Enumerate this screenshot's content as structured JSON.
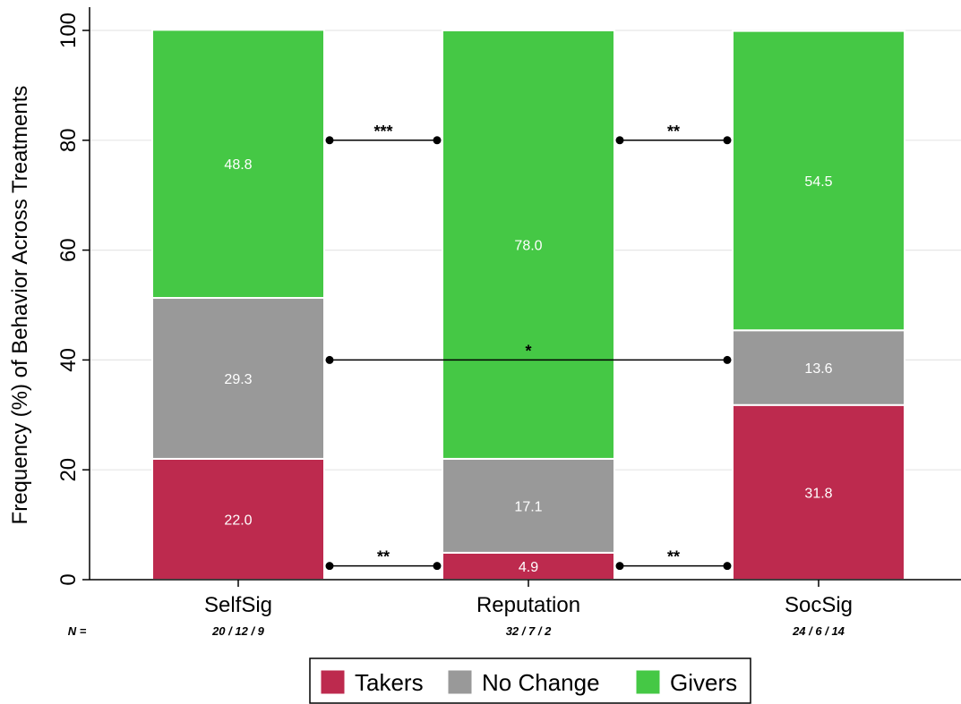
{
  "chart_data": {
    "type": "bar",
    "stacked": true,
    "title": "",
    "xlabel": "",
    "ylabel": "Frequency (%) of Behavior Across Treatments",
    "ylim": [
      0,
      100
    ],
    "yticks": [
      0,
      20,
      40,
      60,
      80,
      100
    ],
    "grid": true,
    "categories": [
      "SelfSig",
      "Reputation",
      "SocSig"
    ],
    "series": [
      {
        "name": "Takers",
        "color": "#bd2a4e",
        "values": [
          22.0,
          4.9,
          31.8
        ],
        "labels": [
          "22.0",
          "4.9",
          "31.8"
        ]
      },
      {
        "name": "No Change",
        "color": "#999999",
        "values": [
          29.3,
          17.1,
          13.6
        ],
        "labels": [
          "29.3",
          "17.1",
          "13.6"
        ]
      },
      {
        "name": "Givers",
        "color": "#45c845",
        "values": [
          48.8,
          78.0,
          54.5
        ],
        "labels": [
          "48.8",
          "78.0",
          "54.5"
        ]
      }
    ],
    "n_prefix": "N =",
    "n_labels": [
      "20 / 12 / 9",
      "32 / 7 / 2",
      "24 / 6 / 14"
    ],
    "annotations": [
      {
        "from": 0,
        "to": 1,
        "y": 80,
        "text": "***"
      },
      {
        "from": 1,
        "to": 2,
        "y": 80,
        "text": "**"
      },
      {
        "from": 0,
        "to": 2,
        "y": 40,
        "text": "*"
      },
      {
        "from": 0,
        "to": 1,
        "y": 2.5,
        "text": "**"
      },
      {
        "from": 1,
        "to": 2,
        "y": 2.5,
        "text": "**"
      }
    ],
    "legend_position": "bottom"
  }
}
